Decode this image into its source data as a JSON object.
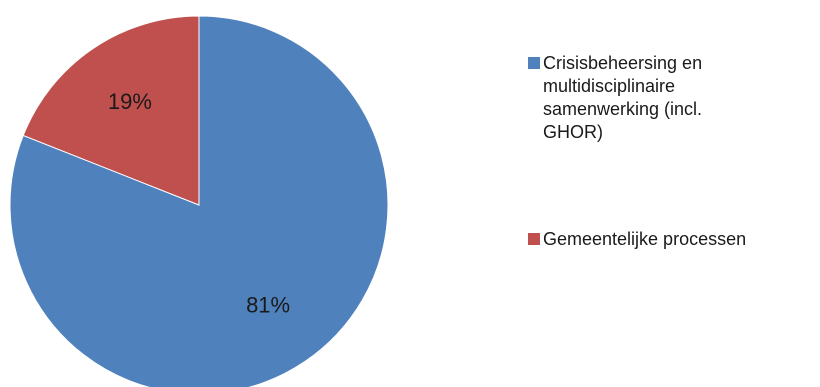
{
  "chart_data": {
    "type": "pie",
    "categories": [
      "Crisisbeheersing en multidisciplinaire samenwerking (incl. GHOR)",
      "Gemeentelijke processen"
    ],
    "values": [
      81,
      19
    ],
    "data_labels": [
      "81%",
      "19%"
    ],
    "colors": [
      "#4f81bd",
      "#c0504d"
    ],
    "legend_position": "right",
    "title": ""
  },
  "legend": {
    "items": [
      {
        "label": "Crisisbeheersing en multidisciplinaire samenwerking (incl. GHOR)",
        "lines": [
          "Crisisbeheersing en",
          "multidisciplinaire",
          "samenwerking (incl.",
          "GHOR)"
        ],
        "color": "#4f81bd"
      },
      {
        "label": "Gemeentelijke processen",
        "lines": [
          "Gemeentelijke processen"
        ],
        "color": "#c0504d"
      }
    ]
  }
}
